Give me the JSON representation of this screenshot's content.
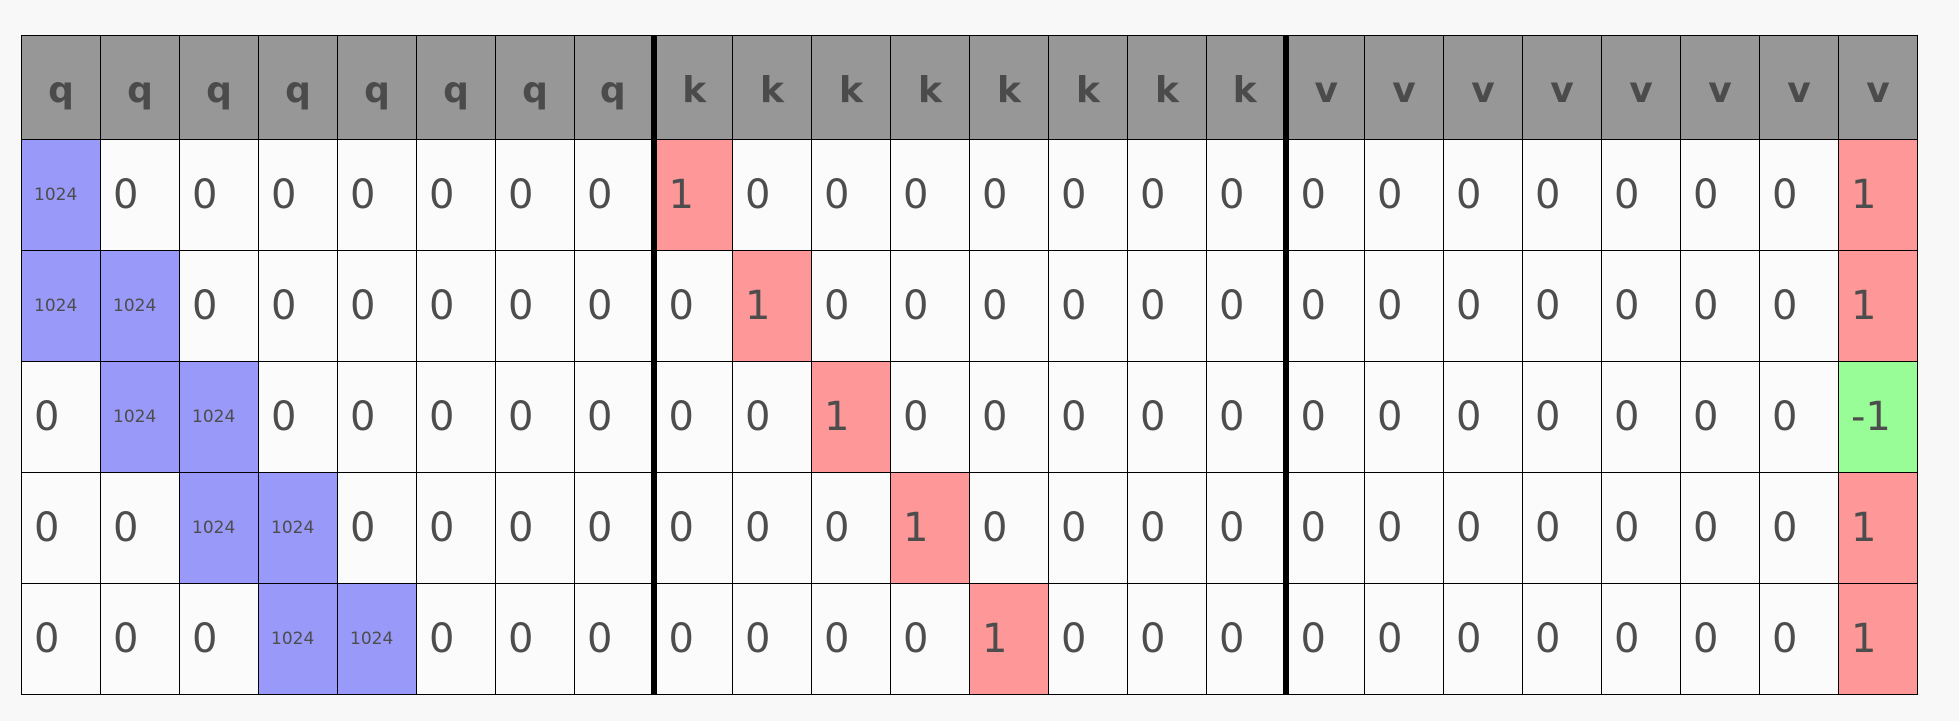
{
  "colors": {
    "header_bg": "#979797",
    "cell_bg": "#fbfbfb",
    "blue": "#9999fa",
    "red": "#fd9798",
    "green": "#99fd97"
  },
  "headers": [
    "q",
    "q",
    "q",
    "q",
    "q",
    "q",
    "q",
    "q",
    "k",
    "k",
    "k",
    "k",
    "k",
    "k",
    "k",
    "k",
    "v",
    "v",
    "v",
    "v",
    "v",
    "v",
    "v",
    "v"
  ],
  "rows": [
    [
      {
        "v": "1024",
        "c": "blue",
        "s": 1
      },
      {
        "v": "0"
      },
      {
        "v": "0"
      },
      {
        "v": "0"
      },
      {
        "v": "0"
      },
      {
        "v": "0"
      },
      {
        "v": "0"
      },
      {
        "v": "0"
      },
      {
        "v": "1",
        "c": "red"
      },
      {
        "v": "0"
      },
      {
        "v": "0"
      },
      {
        "v": "0"
      },
      {
        "v": "0"
      },
      {
        "v": "0"
      },
      {
        "v": "0"
      },
      {
        "v": "0"
      },
      {
        "v": "0"
      },
      {
        "v": "0"
      },
      {
        "v": "0"
      },
      {
        "v": "0"
      },
      {
        "v": "0"
      },
      {
        "v": "0"
      },
      {
        "v": "0"
      },
      {
        "v": "1",
        "c": "red"
      }
    ],
    [
      {
        "v": "1024",
        "c": "blue",
        "s": 1
      },
      {
        "v": "1024",
        "c": "blue",
        "s": 1
      },
      {
        "v": "0"
      },
      {
        "v": "0"
      },
      {
        "v": "0"
      },
      {
        "v": "0"
      },
      {
        "v": "0"
      },
      {
        "v": "0"
      },
      {
        "v": "0"
      },
      {
        "v": "1",
        "c": "red"
      },
      {
        "v": "0"
      },
      {
        "v": "0"
      },
      {
        "v": "0"
      },
      {
        "v": "0"
      },
      {
        "v": "0"
      },
      {
        "v": "0"
      },
      {
        "v": "0"
      },
      {
        "v": "0"
      },
      {
        "v": "0"
      },
      {
        "v": "0"
      },
      {
        "v": "0"
      },
      {
        "v": "0"
      },
      {
        "v": "0"
      },
      {
        "v": "1",
        "c": "red"
      }
    ],
    [
      {
        "v": "0"
      },
      {
        "v": "1024",
        "c": "blue",
        "s": 1
      },
      {
        "v": "1024",
        "c": "blue",
        "s": 1
      },
      {
        "v": "0"
      },
      {
        "v": "0"
      },
      {
        "v": "0"
      },
      {
        "v": "0"
      },
      {
        "v": "0"
      },
      {
        "v": "0"
      },
      {
        "v": "0"
      },
      {
        "v": "1",
        "c": "red"
      },
      {
        "v": "0"
      },
      {
        "v": "0"
      },
      {
        "v": "0"
      },
      {
        "v": "0"
      },
      {
        "v": "0"
      },
      {
        "v": "0"
      },
      {
        "v": "0"
      },
      {
        "v": "0"
      },
      {
        "v": "0"
      },
      {
        "v": "0"
      },
      {
        "v": "0"
      },
      {
        "v": "0"
      },
      {
        "v": "-1",
        "c": "green"
      }
    ],
    [
      {
        "v": "0"
      },
      {
        "v": "0"
      },
      {
        "v": "1024",
        "c": "blue",
        "s": 1
      },
      {
        "v": "1024",
        "c": "blue",
        "s": 1
      },
      {
        "v": "0"
      },
      {
        "v": "0"
      },
      {
        "v": "0"
      },
      {
        "v": "0"
      },
      {
        "v": "0"
      },
      {
        "v": "0"
      },
      {
        "v": "0"
      },
      {
        "v": "1",
        "c": "red"
      },
      {
        "v": "0"
      },
      {
        "v": "0"
      },
      {
        "v": "0"
      },
      {
        "v": "0"
      },
      {
        "v": "0"
      },
      {
        "v": "0"
      },
      {
        "v": "0"
      },
      {
        "v": "0"
      },
      {
        "v": "0"
      },
      {
        "v": "0"
      },
      {
        "v": "0"
      },
      {
        "v": "1",
        "c": "red"
      }
    ],
    [
      {
        "v": "0"
      },
      {
        "v": "0"
      },
      {
        "v": "0"
      },
      {
        "v": "1024",
        "c": "blue",
        "s": 1
      },
      {
        "v": "1024",
        "c": "blue",
        "s": 1
      },
      {
        "v": "0"
      },
      {
        "v": "0"
      },
      {
        "v": "0"
      },
      {
        "v": "0"
      },
      {
        "v": "0"
      },
      {
        "v": "0"
      },
      {
        "v": "0"
      },
      {
        "v": "1",
        "c": "red"
      },
      {
        "v": "0"
      },
      {
        "v": "0"
      },
      {
        "v": "0"
      },
      {
        "v": "0"
      },
      {
        "v": "0"
      },
      {
        "v": "0"
      },
      {
        "v": "0"
      },
      {
        "v": "0"
      },
      {
        "v": "0"
      },
      {
        "v": "0"
      },
      {
        "v": "1",
        "c": "red"
      }
    ]
  ]
}
